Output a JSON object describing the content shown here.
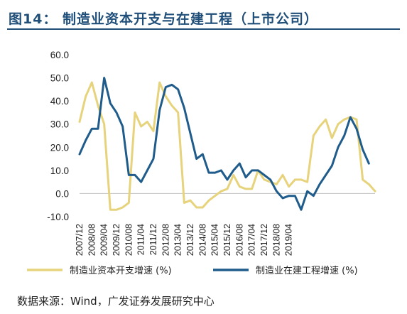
{
  "header": {
    "title": "图14：  制造业资本开支与在建工程（上市公司）"
  },
  "footer": {
    "source": "数据来源：Wind，广发证券发展研究中心"
  },
  "chart_data": {
    "type": "line",
    "title": "",
    "xlabel": "",
    "ylabel": "",
    "ylim": [
      -10,
      60
    ],
    "yticks": [
      -10,
      0,
      10,
      20,
      30,
      40,
      50,
      60
    ],
    "ytick_labels": [
      "-10.0",
      "0.0",
      "10.0",
      "20.0",
      "30.0",
      "40.0",
      "50.0",
      "60.0"
    ],
    "x_start": "2007/12",
    "x_step": "quarter",
    "x_tick_labels": [
      "2007/12",
      "2008/08",
      "2009/04",
      "2009/12",
      "2010/08",
      "2011/04",
      "2011/12",
      "2012/08",
      "2013/04",
      "2013/12",
      "2014/08",
      "2015/04",
      "2015/12",
      "2016/08",
      "2017/04",
      "2017/12",
      "2018/08",
      "2019/04"
    ],
    "x_tick_every": 2,
    "grid": false,
    "legend_position": "bottom",
    "series": [
      {
        "name": "制造业资本开支增速 (%)",
        "color": "#e6d37c",
        "values": [
          31,
          42,
          48,
          38,
          30,
          -7,
          -7,
          -6,
          -4,
          35,
          29,
          31,
          27,
          48,
          42,
          38,
          35,
          -4,
          -3,
          -6,
          -6,
          -3,
          -1,
          1,
          2,
          8,
          3,
          2,
          2,
          10,
          6,
          5,
          4,
          8,
          3,
          6,
          6,
          5,
          25,
          29,
          32,
          24,
          30,
          32,
          33,
          32,
          6,
          4,
          1
        ]
      },
      {
        "name": "制造业在建工程增速 (%)",
        "color": "#1f5c8b",
        "values": [
          17,
          23,
          28,
          28,
          50,
          39,
          35,
          29,
          8,
          8,
          5,
          10,
          15,
          36,
          46,
          47,
          45,
          37,
          26,
          15,
          17,
          9,
          9,
          10,
          6,
          10,
          13,
          7,
          10,
          10,
          8,
          6,
          1,
          -2,
          -1,
          -1,
          -7,
          1,
          -1,
          4,
          8,
          12,
          20,
          25,
          33,
          28,
          19,
          13
        ]
      }
    ]
  }
}
